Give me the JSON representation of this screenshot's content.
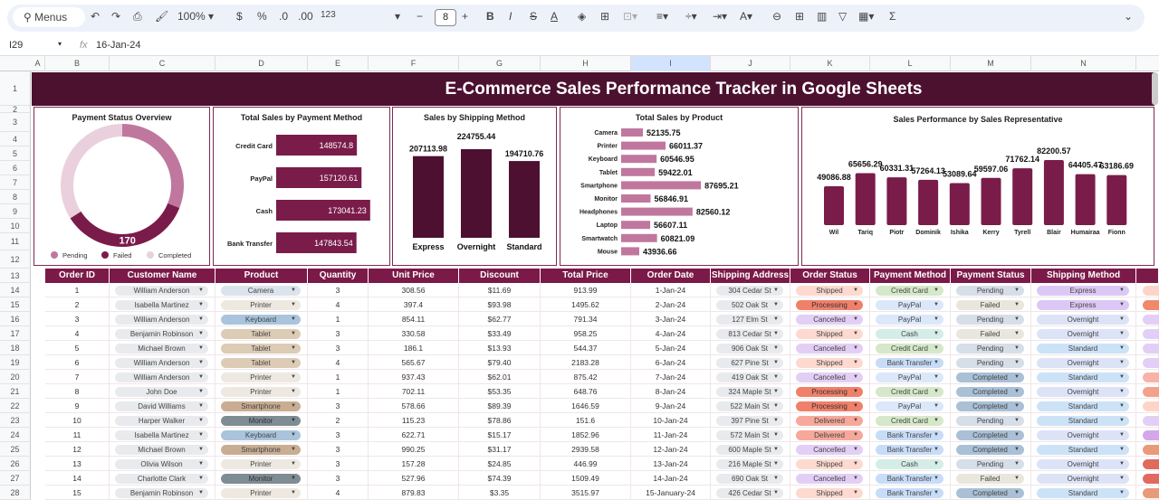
{
  "toolbar": {
    "menus": "Menus",
    "zoom": "100%",
    "currency": "$",
    "percent": "%",
    "dec_less": ".0",
    "dec_more": ".00",
    "format": "123",
    "font_size": "8",
    "bold": "B",
    "italic": "I",
    "sum": "Σ"
  },
  "formula_bar": {
    "cell_ref": "I29",
    "fx": "fx",
    "value": "16-Jan-24"
  },
  "columns": [
    "A",
    "B",
    "C",
    "D",
    "E",
    "F",
    "G",
    "H",
    "I",
    "J",
    "K",
    "L",
    "M",
    "N"
  ],
  "selected_column": "I",
  "rows": [
    "1",
    "2",
    "3",
    "4",
    "5",
    "6",
    "7",
    "8",
    "9",
    "10",
    "11",
    "12",
    "13",
    "14",
    "15",
    "16",
    "17",
    "18",
    "19",
    "20",
    "21",
    "22",
    "23",
    "24",
    "25",
    "26",
    "27",
    "28"
  ],
  "title": "E-Commerce Sales Performance Tracker in Google Sheets",
  "colors": {
    "title_bg": "#4d1130",
    "header_bg": "#7b1a48",
    "bar": "#7a1c4a",
    "bar_dark": "#4d1030",
    "bar_pink": "#c0779e",
    "donut_completed": "#ead0dc"
  },
  "chart_data": [
    {
      "type": "pie",
      "title": "Payment Status Overview",
      "donut": true,
      "categories": [
        "Pending",
        "Failed",
        "Completed"
      ],
      "shares": [
        0.31,
        0.35,
        0.34
      ],
      "data_labels": [
        "",
        "170",
        ""
      ],
      "legend": "bottom"
    },
    {
      "type": "bar",
      "orientation": "horizontal",
      "title": "Total Sales by Payment Method",
      "categories": [
        "Credit Card",
        "PayPal",
        "Cash",
        "Bank Transfer"
      ],
      "values": [
        148574.8,
        157120.61,
        173041.23,
        147843.54
      ],
      "value_labels": [
        "148574.8",
        "157120.61",
        "173041.23",
        "147843.54"
      ]
    },
    {
      "type": "bar",
      "title": "Sales by Shipping Method",
      "categories": [
        "Express",
        "Overnight",
        "Standard"
      ],
      "values": [
        207113.98,
        224755.44,
        194710.76
      ],
      "value_labels": [
        "207113.98",
        "224755.44",
        "194710.76"
      ]
    },
    {
      "type": "bar",
      "orientation": "horizontal",
      "title": "Total Sales by Product",
      "categories": [
        "Camera",
        "Printer",
        "Keyboard",
        "Tablet",
        "Smartphone",
        "Monitor",
        "Headphones",
        "Laptop",
        "Smartwatch",
        "Mouse"
      ],
      "values": [
        52135.75,
        66011.37,
        60546.95,
        59422.01,
        87695.21,
        56846.91,
        82560.12,
        56607.11,
        60821.09,
        43936.66
      ],
      "value_labels": [
        "52135.75",
        "66011.37",
        "60546.95",
        "59422.01",
        "87695.21",
        "56846.91",
        "82560.12",
        "56607.11",
        "60821.09",
        "43936.66"
      ]
    },
    {
      "type": "bar",
      "title": "Sales Performance by Sales Representative",
      "categories": [
        "Wil",
        "Tariq",
        "Piotr",
        "Dominik",
        "Ishika",
        "Kerry",
        "Tyrell",
        "Blair",
        "Humairaa",
        "Fionn"
      ],
      "values": [
        49086.88,
        65656.29,
        60331.31,
        57264.13,
        53089.64,
        59597.06,
        71762.14,
        82200.57,
        64405.47,
        63186.69
      ],
      "value_labels": [
        "49086.88",
        "65656.29",
        "60331.31",
        "57264.13",
        "53089.64",
        "59597.06",
        "71762.14",
        "82200.57",
        "64405.47",
        "63186.69"
      ]
    }
  ],
  "table": {
    "headers": [
      "Order ID",
      "Customer Name",
      "Product",
      "Quantity",
      "Unit Price",
      "Discount",
      "Total Price",
      "Order Date",
      "Shipping Address",
      "Order Status",
      "Payment Method",
      "Payment Status",
      "Shipping Method"
    ],
    "rows": [
      [
        "1",
        "William Anderson",
        "Camera",
        "3",
        "308.56",
        "$11.69",
        "913.99",
        "1-Jan-24",
        "304 Cedar St",
        "Shipped",
        "Credit Card",
        "Pending",
        "Express"
      ],
      [
        "2",
        "Isabella Martinez",
        "Printer",
        "4",
        "397.4",
        "$93.98",
        "1495.62",
        "2-Jan-24",
        "502 Oak St",
        "Processing",
        "PayPal",
        "Failed",
        "Express"
      ],
      [
        "3",
        "William Anderson",
        "Keyboard",
        "1",
        "854.11",
        "$62.77",
        "791.34",
        "3-Jan-24",
        "127 Elm St",
        "Cancelled",
        "PayPal",
        "Pending",
        "Overnight"
      ],
      [
        "4",
        "Benjamin Robinson",
        "Tablet",
        "3",
        "330.58",
        "$33.49",
        "958.25",
        "4-Jan-24",
        "813 Cedar St",
        "Shipped",
        "Cash",
        "Failed",
        "Overnight"
      ],
      [
        "5",
        "Michael Brown",
        "Tablet",
        "3",
        "186.1",
        "$13.93",
        "544.37",
        "5-Jan-24",
        "906 Oak St",
        "Cancelled",
        "Credit Card",
        "Pending",
        "Standard"
      ],
      [
        "6",
        "William Anderson",
        "Tablet",
        "4",
        "565.67",
        "$79.40",
        "2183.28",
        "6-Jan-24",
        "627 Pine St",
        "Shipped",
        "Bank Transfer",
        "Pending",
        "Overnight"
      ],
      [
        "7",
        "William Anderson",
        "Printer",
        "1",
        "937.43",
        "$62.01",
        "875.42",
        "7-Jan-24",
        "419 Oak St",
        "Cancelled",
        "PayPal",
        "Completed",
        "Standard"
      ],
      [
        "8",
        "John Doe",
        "Printer",
        "1",
        "702.11",
        "$53.35",
        "648.76",
        "8-Jan-24",
        "324 Maple St",
        "Processing",
        "Credit Card",
        "Completed",
        "Overnight"
      ],
      [
        "9",
        "David Williams",
        "Smartphone",
        "3",
        "578.66",
        "$89.39",
        "1646.59",
        "9-Jan-24",
        "522 Main St",
        "Processing",
        "PayPal",
        "Completed",
        "Standard"
      ],
      [
        "10",
        "Harper Walker",
        "Monitor",
        "2",
        "115.23",
        "$78.86",
        "151.6",
        "10-Jan-24",
        "397 Pine St",
        "Delivered",
        "Credit Card",
        "Pending",
        "Standard"
      ],
      [
        "11",
        "Isabella Martinez",
        "Keyboard",
        "3",
        "622.71",
        "$15.17",
        "1852.96",
        "11-Jan-24",
        "572 Main St",
        "Delivered",
        "Bank Transfer",
        "Completed",
        "Overnight"
      ],
      [
        "12",
        "Michael Brown",
        "Smartphone",
        "3",
        "990.25",
        "$31.17",
        "2939.58",
        "12-Jan-24",
        "600 Maple St",
        "Cancelled",
        "Bank Transfer",
        "Completed",
        "Standard"
      ],
      [
        "13",
        "Olivia Wilson",
        "Printer",
        "3",
        "157.28",
        "$24.85",
        "446.99",
        "13-Jan-24",
        "216 Maple St",
        "Shipped",
        "Cash",
        "Pending",
        "Overnight"
      ],
      [
        "14",
        "Charlotte Clark",
        "Monitor",
        "3",
        "527.96",
        "$74.39",
        "1509.49",
        "14-Jan-24",
        "690 Oak St",
        "Cancelled",
        "Bank Transfer",
        "Failed",
        "Overnight"
      ],
      [
        "15",
        "Benjamin Robinson",
        "Printer",
        "4",
        "879.83",
        "$3.35",
        "3515.97",
        "15-January-24",
        "426 Cedar St",
        "Shipped",
        "Bank Transfer",
        "Completed",
        "Standard"
      ]
    ],
    "extra_column_colors": [
      "#fcd5c8",
      "#f0886c",
      "#e3cff5",
      "#e3cff5",
      "#e3cff5",
      "#e3cff5",
      "#f8b3a8",
      "#f4a18c",
      "#fcd5c8",
      "#e3cff5",
      "#d3a7ea",
      "#e99a78",
      "#e06a5e",
      "#e06a5e",
      "#e99a78"
    ]
  }
}
